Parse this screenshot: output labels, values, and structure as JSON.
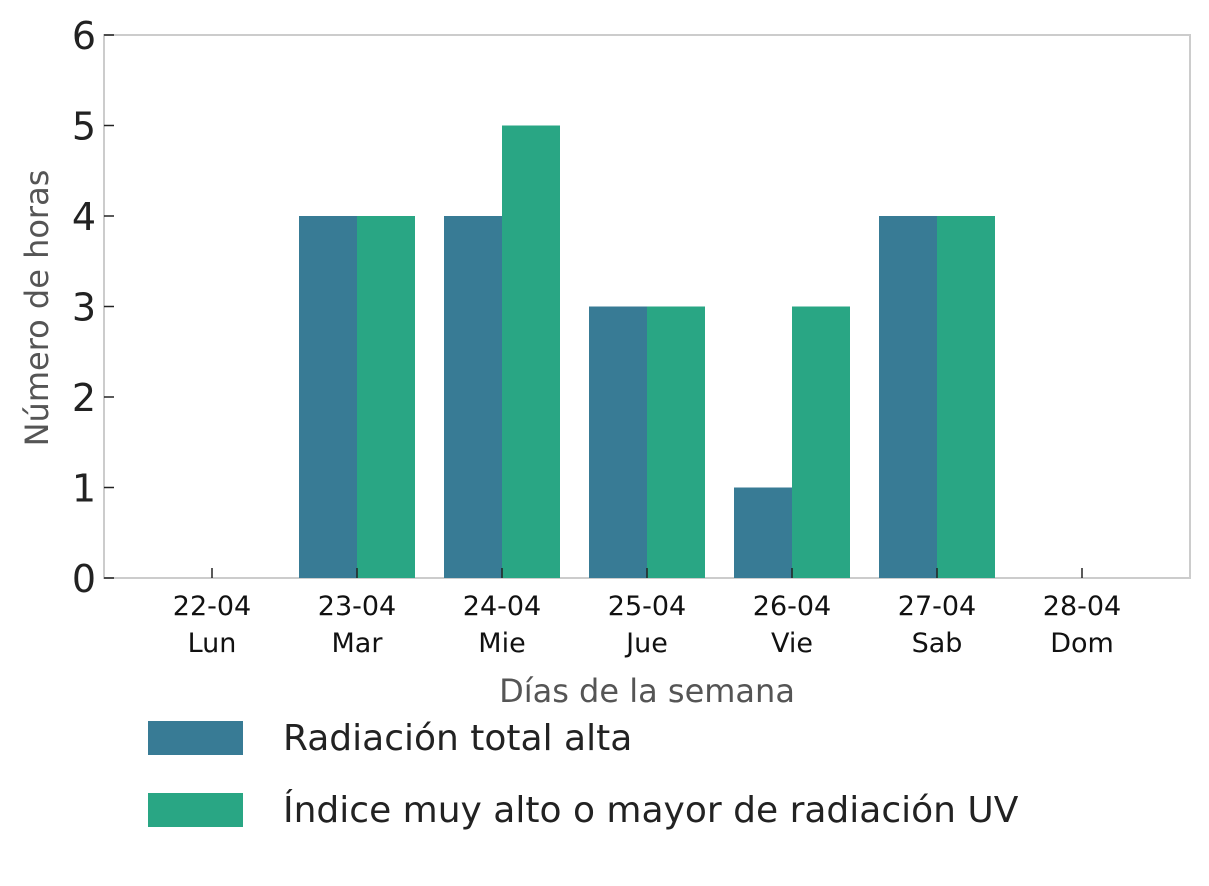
{
  "chart_data": {
    "type": "bar",
    "categories": [
      "22-04",
      "23-04",
      "24-04",
      "25-04",
      "26-04",
      "27-04",
      "28-04"
    ],
    "category_sublabels": [
      "Lun",
      "Mar",
      "Mie",
      "Jue",
      "Vie",
      "Sab",
      "Dom"
    ],
    "series": [
      {
        "name": "Radiación total alta",
        "values": [
          0,
          4,
          4,
          3,
          1,
          4,
          0
        ],
        "color": "#387b95"
      },
      {
        "name": "Índice muy alto o mayor de radiación UV",
        "values": [
          0,
          4,
          5,
          3,
          3,
          4,
          0
        ],
        "color": "#29a684"
      }
    ],
    "xlabel": "Días de la semana",
    "ylabel": "Número de horas",
    "ylim": [
      0,
      6
    ],
    "yticks": [
      "0",
      "1",
      "2",
      "3",
      "4",
      "5",
      "6"
    ],
    "grid": false,
    "legend_position": "bottom"
  }
}
